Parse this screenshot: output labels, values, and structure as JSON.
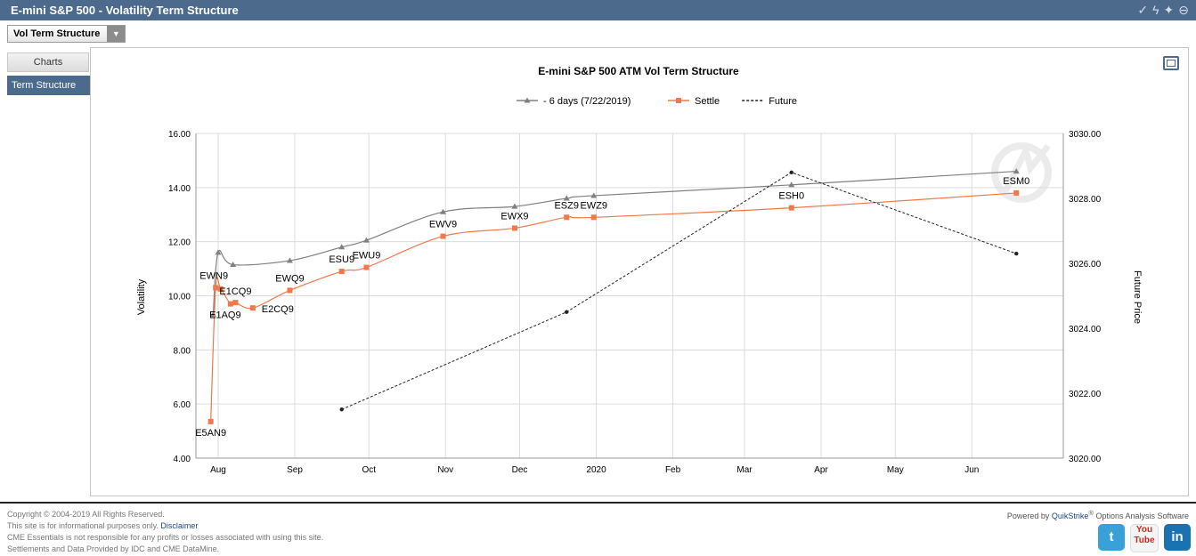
{
  "window": {
    "title": "E-mini S&P 500 - Volatility Term Structure"
  },
  "titlebar_icons": [
    "check-icon",
    "lightning-icon",
    "twitter-bird-icon",
    "minimize-icon"
  ],
  "view_select": {
    "value": "Vol Term Structure"
  },
  "sidebar": {
    "items": [
      {
        "label": "Charts"
      },
      {
        "label": "Term Structure"
      }
    ]
  },
  "chart_data": {
    "type": "line",
    "title": "E-mini S&P 500 ATM Vol Term Structure",
    "xlabel": "",
    "ylabel": "Volatility",
    "y2label": "Future Price",
    "ylim": [
      4,
      16
    ],
    "y2lim": [
      3020,
      3030
    ],
    "yticks": [
      "4.00",
      "6.00",
      "8.00",
      "10.00",
      "12.00",
      "14.00",
      "16.00"
    ],
    "y2ticks": [
      "3020.00",
      "3022.00",
      "3024.00",
      "3026.00",
      "3028.00",
      "3030.00"
    ],
    "xlim": [
      "2019-07-23",
      "2020-07-08"
    ],
    "xticks": [
      {
        "label": "Aug",
        "date": "2019-08-01"
      },
      {
        "label": "Sep",
        "date": "2019-09-01"
      },
      {
        "label": "Oct",
        "date": "2019-10-01"
      },
      {
        "label": "Nov",
        "date": "2019-11-01"
      },
      {
        "label": "Dec",
        "date": "2019-12-01"
      },
      {
        "label": "2020",
        "date": "2020-01-01"
      },
      {
        "label": "Feb",
        "date": "2020-02-01"
      },
      {
        "label": "Mar",
        "date": "2020-03-01"
      },
      {
        "label": "Apr",
        "date": "2020-04-01"
      },
      {
        "label": "May",
        "date": "2020-05-01"
      },
      {
        "label": "Jun",
        "date": "2020-06-01"
      }
    ],
    "grid": true,
    "legend_position": "top",
    "series": [
      {
        "name": "- 6 days (7/22/2019)",
        "color": "#808080",
        "marker": "triangle",
        "axis": "left",
        "points": [
          {
            "x": "2019-07-30",
            "y": 9.3
          },
          {
            "x": "2019-08-01",
            "y": 11.6
          },
          {
            "x": "2019-08-07",
            "y": 11.15
          },
          {
            "x": "2019-08-30",
            "y": 11.3
          },
          {
            "x": "2019-09-20",
            "y": 11.8
          },
          {
            "x": "2019-09-30",
            "y": 12.05
          },
          {
            "x": "2019-10-31",
            "y": 13.1
          },
          {
            "x": "2019-11-29",
            "y": 13.3
          },
          {
            "x": "2019-12-20",
            "y": 13.6
          },
          {
            "x": "2019-12-31",
            "y": 13.7
          },
          {
            "x": "2020-03-20",
            "y": 14.1
          },
          {
            "x": "2020-06-19",
            "y": 14.6
          }
        ]
      },
      {
        "name": "Settle",
        "color": "#f0784a",
        "marker": "square",
        "axis": "left",
        "points": [
          {
            "x": "2019-07-29",
            "y": 5.35,
            "label": "E5AN9"
          },
          {
            "x": "2019-07-31",
            "y": 10.3,
            "label": "EWN9"
          },
          {
            "x": "2019-08-02",
            "y": 10.25
          },
          {
            "x": "2019-08-06",
            "y": 9.7,
            "label": "E1AQ9"
          },
          {
            "x": "2019-08-08",
            "y": 9.75,
            "label": "E1CQ9"
          },
          {
            "x": "2019-08-15",
            "y": 9.55,
            "label": "E2CQ9"
          },
          {
            "x": "2019-08-30",
            "y": 10.2,
            "label": "EWQ9"
          },
          {
            "x": "2019-09-20",
            "y": 10.9,
            "label": "ESU9"
          },
          {
            "x": "2019-09-30",
            "y": 11.05,
            "label": "EWU9"
          },
          {
            "x": "2019-10-31",
            "y": 12.2,
            "label": "EWV9"
          },
          {
            "x": "2019-11-29",
            "y": 12.5,
            "label": "EWX9"
          },
          {
            "x": "2019-12-20",
            "y": 12.9,
            "label": "ESZ9"
          },
          {
            "x": "2019-12-31",
            "y": 12.9,
            "label": "EWZ9"
          },
          {
            "x": "2020-03-20",
            "y": 13.25,
            "label": "ESH0"
          },
          {
            "x": "2020-06-19",
            "y": 13.8,
            "label": "ESM0"
          }
        ]
      },
      {
        "name": "Future",
        "color": "#222222",
        "marker": "dot",
        "dash": true,
        "axis": "right",
        "points": [
          {
            "x": "2019-09-20",
            "y": 3021.5
          },
          {
            "x": "2019-12-20",
            "y": 3024.5
          },
          {
            "x": "2020-03-20",
            "y": 3028.8
          },
          {
            "x": "2020-06-19",
            "y": 3026.3
          }
        ]
      }
    ]
  },
  "footer": {
    "copyright": "Copyright © 2004-2019 All Rights Reserved.",
    "info_text": "This site is for informational purposes only.",
    "disclaimer_link": "Disclaimer",
    "responsibility": "CME Essentials is not responsible for any profits or losses associated with using this site.",
    "settlements": "Settlements and Data Provided by IDC and CME DataMine.",
    "powered_prefix": "Powered by ",
    "powered_brand": "QuikStrike",
    "powered_reg": "®",
    "powered_suffix": " Options Analysis Software"
  },
  "social": [
    {
      "name": "twitter-icon",
      "text": "t"
    },
    {
      "name": "youtube-icon",
      "text": "You Tube"
    },
    {
      "name": "linkedin-icon",
      "text": "in"
    }
  ]
}
